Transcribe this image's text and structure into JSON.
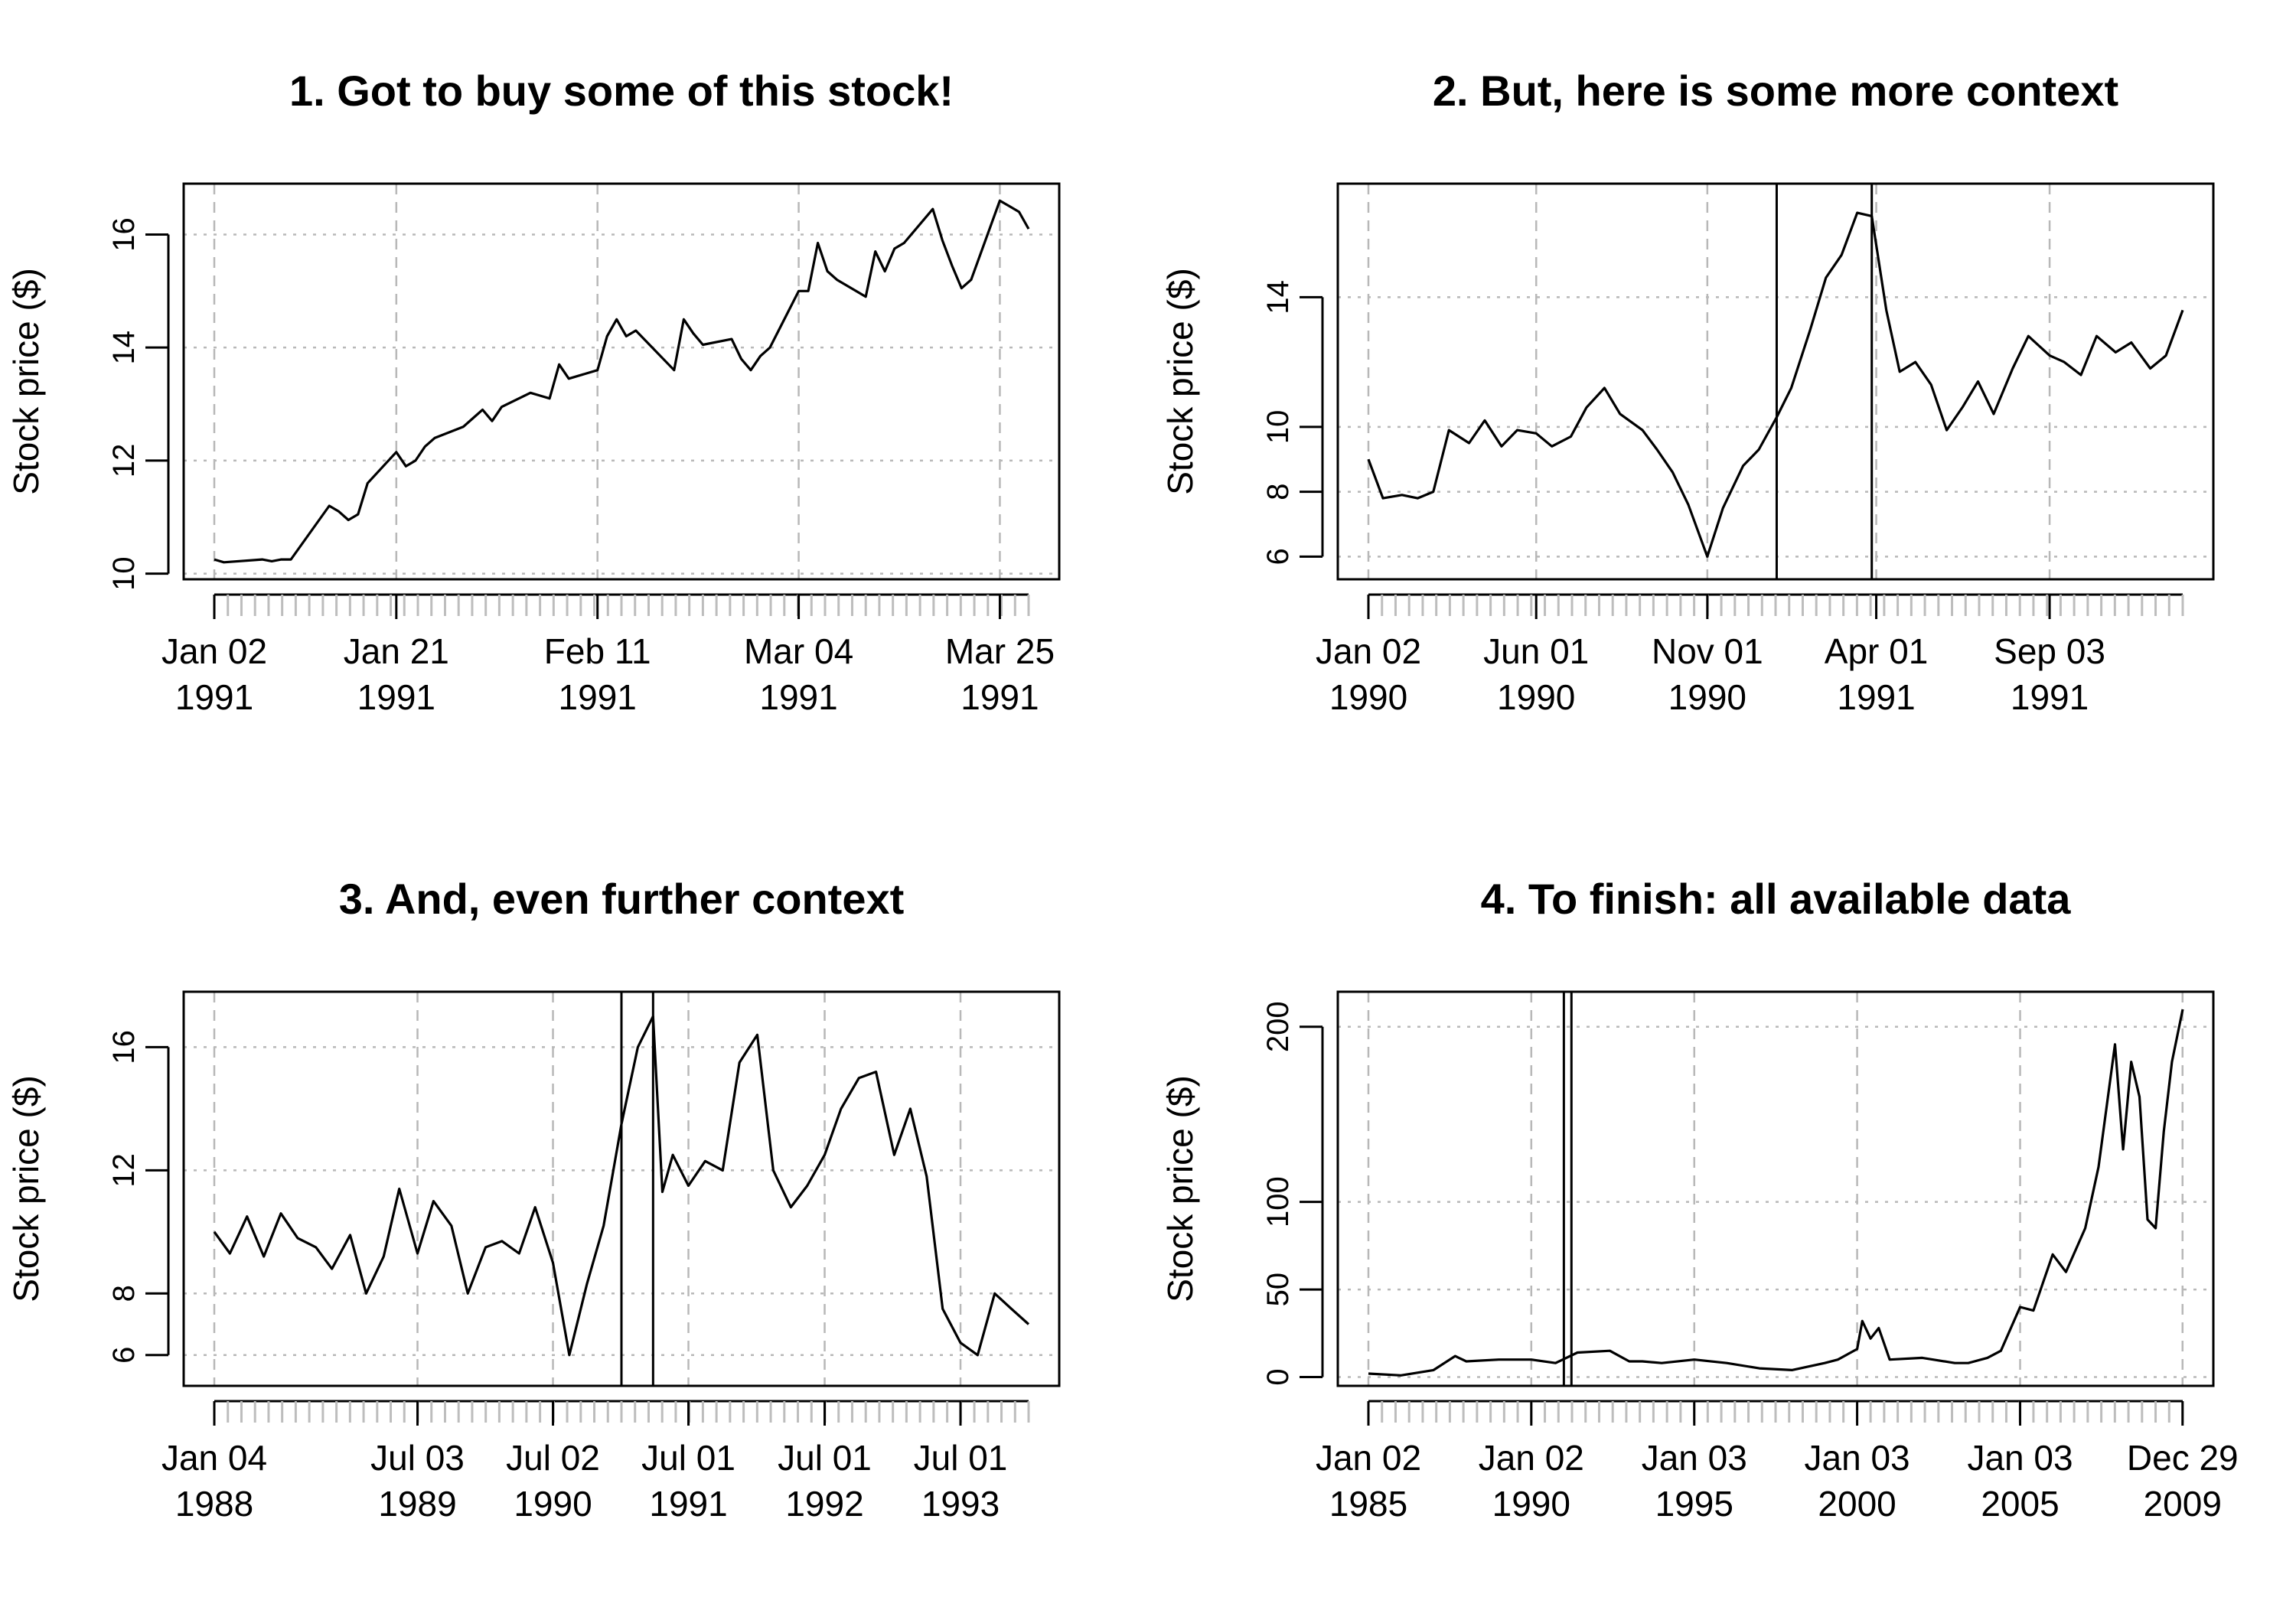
{
  "chart_data": [
    {
      "type": "line",
      "title": "1. Got to buy some of this stock!",
      "ylabel": "Stock price ($)",
      "xlabel": "",
      "xlim": [
        "1991-01-02",
        "1991-03-28"
      ],
      "ylim": [
        9.9,
        16.9
      ],
      "yticks": [
        10,
        12,
        14,
        16
      ],
      "xticks": [
        {
          "date": "1991-01-02",
          "label": "Jan 02",
          "sub": "1991"
        },
        {
          "date": "1991-01-21",
          "label": "Jan 21",
          "sub": "1991"
        },
        {
          "date": "1991-02-11",
          "label": "Feb 11",
          "sub": "1991"
        },
        {
          "date": "1991-03-04",
          "label": "Mar 04",
          "sub": "1991"
        },
        {
          "date": "1991-03-25",
          "label": "Mar 25",
          "sub": "1991"
        }
      ],
      "grid": true,
      "series": [
        {
          "x": [
            "1991-01-02",
            "1991-01-03",
            "1991-01-07",
            "1991-01-08",
            "1991-01-09",
            "1991-01-10",
            "1991-01-14",
            "1991-01-15",
            "1991-01-16",
            "1991-01-17",
            "1991-01-18",
            "1991-01-21",
            "1991-01-22",
            "1991-01-23",
            "1991-01-24",
            "1991-01-25",
            "1991-01-28",
            "1991-01-29",
            "1991-01-30",
            "1991-01-31",
            "1991-02-01",
            "1991-02-04",
            "1991-02-05",
            "1991-02-06",
            "1991-02-07",
            "1991-02-08",
            "1991-02-11",
            "1991-02-12",
            "1991-02-13",
            "1991-02-14",
            "1991-02-15",
            "1991-02-19",
            "1991-02-20",
            "1991-02-21",
            "1991-02-22",
            "1991-02-25",
            "1991-02-26",
            "1991-02-27",
            "1991-02-28",
            "1991-03-01",
            "1991-03-04",
            "1991-03-05",
            "1991-03-06",
            "1991-03-07",
            "1991-03-08",
            "1991-03-11",
            "1991-03-12",
            "1991-03-13",
            "1991-03-14",
            "1991-03-15",
            "1991-03-18",
            "1991-03-19",
            "1991-03-20",
            "1991-03-21",
            "1991-03-22",
            "1991-03-25",
            "1991-03-26",
            "1991-03-27",
            "1991-03-28"
          ],
          "y": [
            10.25,
            10.2,
            10.25,
            10.22,
            10.25,
            10.25,
            11.2,
            11.1,
            10.95,
            11.05,
            11.6,
            12.15,
            11.9,
            12.0,
            12.25,
            12.4,
            12.6,
            12.75,
            12.9,
            12.7,
            12.95,
            13.2,
            13.15,
            13.1,
            13.7,
            13.45,
            13.6,
            14.2,
            14.5,
            14.2,
            14.3,
            13.6,
            14.5,
            14.25,
            14.05,
            14.15,
            13.8,
            13.6,
            13.85,
            14.0,
            15.0,
            15.0,
            15.85,
            15.35,
            15.2,
            14.9,
            15.7,
            15.35,
            15.75,
            15.85,
            16.45,
            15.9,
            15.45,
            15.05,
            15.2,
            16.6,
            16.5,
            16.4,
            16.1
          ]
        }
      ]
    },
    {
      "type": "line",
      "title": "2. But, here is some more context",
      "ylabel": "Stock price ($)",
      "xlabel": "",
      "xlim": [
        "1990-01-02",
        "1991-12-31"
      ],
      "ylim": [
        5.3,
        17.5
      ],
      "yticks": [
        6,
        8,
        10,
        14
      ],
      "xticks": [
        {
          "date": "1990-01-02",
          "label": "Jan 02",
          "sub": "1990"
        },
        {
          "date": "1990-06-01",
          "label": "Jun 01",
          "sub": "1990"
        },
        {
          "date": "1990-11-01",
          "label": "Nov 01",
          "sub": "1990"
        },
        {
          "date": "1991-04-01",
          "label": "Apr 01",
          "sub": "1991"
        },
        {
          "date": "1991-09-03",
          "label": "Sep 03",
          "sub": "1991"
        }
      ],
      "vlines": [
        "1991-01-02",
        "1991-03-28"
      ],
      "grid": true,
      "series": [
        {
          "x": [
            "1990-01-02",
            "1990-01-15",
            "1990-02-01",
            "1990-02-15",
            "1990-03-01",
            "1990-03-15",
            "1990-04-02",
            "1990-04-16",
            "1990-05-01",
            "1990-05-15",
            "1990-06-01",
            "1990-06-15",
            "1990-07-02",
            "1990-07-16",
            "1990-08-01",
            "1990-08-15",
            "1990-09-04",
            "1990-09-17",
            "1990-10-01",
            "1990-10-15",
            "1990-11-01",
            "1990-11-15",
            "1990-12-03",
            "1990-12-17",
            "1991-01-02",
            "1991-01-15",
            "1991-02-01",
            "1991-02-15",
            "1991-03-01",
            "1991-03-15",
            "1991-03-28",
            "1991-04-10",
            "1991-04-22",
            "1991-05-06",
            "1991-05-20",
            "1991-06-03",
            "1991-06-17",
            "1991-07-01",
            "1991-07-15",
            "1991-08-01",
            "1991-08-15",
            "1991-09-03",
            "1991-09-16",
            "1991-10-01",
            "1991-10-15",
            "1991-11-01",
            "1991-11-15",
            "1991-12-02",
            "1991-12-16",
            "1991-12-31"
          ],
          "y": [
            9.0,
            7.8,
            7.9,
            7.8,
            8.0,
            9.9,
            9.5,
            10.2,
            9.4,
            9.9,
            9.8,
            9.4,
            9.7,
            10.6,
            11.2,
            10.4,
            9.9,
            9.3,
            8.6,
            7.6,
            6.0,
            7.5,
            8.8,
            9.3,
            10.3,
            11.2,
            13.0,
            14.6,
            15.3,
            16.6,
            16.5,
            13.6,
            11.7,
            12.0,
            11.3,
            9.9,
            10.6,
            11.4,
            10.4,
            11.8,
            12.8,
            12.2,
            12.0,
            11.6,
            12.8,
            12.3,
            12.6,
            11.8,
            12.2,
            13.6
          ]
        }
      ]
    },
    {
      "type": "line",
      "title": "3. And, even further context",
      "ylabel": "Stock price ($)",
      "xlabel": "",
      "xlim": [
        "1988-01-04",
        "1993-12-31"
      ],
      "ylim": [
        5.0,
        17.8
      ],
      "yticks": [
        6,
        8,
        12,
        16
      ],
      "xticks": [
        {
          "date": "1988-01-04",
          "label": "Jan 04",
          "sub": "1988"
        },
        {
          "date": "1989-07-03",
          "label": "Jul 03",
          "sub": "1989"
        },
        {
          "date": "1990-07-02",
          "label": "Jul 02",
          "sub": "1990"
        },
        {
          "date": "1991-07-01",
          "label": "Jul 01",
          "sub": "1991"
        },
        {
          "date": "1992-07-01",
          "label": "Jul 01",
          "sub": "1992"
        },
        {
          "date": "1993-07-01",
          "label": "Jul 01",
          "sub": "1993"
        }
      ],
      "vlines": [
        "1991-01-02",
        "1991-03-28"
      ],
      "grid": true,
      "series": [
        {
          "x": [
            "1988-01-04",
            "1988-02-15",
            "1988-04-01",
            "1988-05-16",
            "1988-07-01",
            "1988-08-15",
            "1988-10-03",
            "1988-11-15",
            "1989-01-03",
            "1989-02-15",
            "1989-04-03",
            "1989-05-15",
            "1989-07-03",
            "1989-08-15",
            "1989-10-02",
            "1989-11-15",
            "1990-01-02",
            "1990-02-15",
            "1990-04-02",
            "1990-05-15",
            "1990-07-02",
            "1990-08-15",
            "1990-10-01",
            "1990-11-15",
            "1991-01-02",
            "1991-02-15",
            "1991-03-28",
            "1991-04-22",
            "1991-05-20",
            "1991-07-01",
            "1991-08-15",
            "1991-10-01",
            "1991-11-15",
            "1992-01-02",
            "1992-02-14",
            "1992-04-01",
            "1992-05-15",
            "1992-07-01",
            "1992-08-14",
            "1992-10-01",
            "1992-11-16",
            "1993-01-04",
            "1993-02-16",
            "1993-04-01",
            "1993-05-14",
            "1993-07-01",
            "1993-08-16",
            "1993-10-01",
            "1993-11-15",
            "1993-12-31"
          ],
          "y": [
            10.0,
            9.3,
            10.5,
            9.2,
            10.6,
            9.8,
            9.5,
            8.8,
            9.9,
            8.0,
            9.2,
            11.4,
            9.3,
            11.0,
            10.2,
            8.0,
            9.5,
            9.7,
            9.3,
            10.8,
            9.0,
            6.0,
            8.3,
            10.2,
            13.5,
            16.0,
            17.0,
            11.3,
            12.5,
            11.5,
            12.3,
            12.0,
            15.5,
            16.4,
            12.0,
            10.8,
            11.5,
            12.5,
            14.0,
            15.0,
            15.2,
            12.5,
            14.0,
            11.8,
            7.5,
            6.4,
            6.0,
            8.0,
            7.5,
            7.0
          ]
        }
      ]
    },
    {
      "type": "line",
      "title": "4. To finish: all available data",
      "ylabel": "Stock price ($)",
      "xlabel": "",
      "xlim": [
        "1985-01-02",
        "2009-12-31"
      ],
      "ylim": [
        -5,
        220
      ],
      "yticks": [
        0,
        50,
        100,
        200
      ],
      "xticks": [
        {
          "date": "1985-01-02",
          "label": "Jan 02",
          "sub": "1985"
        },
        {
          "date": "1990-01-02",
          "label": "Jan 02",
          "sub": "1990"
        },
        {
          "date": "1995-01-03",
          "label": "Jan 03",
          "sub": "1995"
        },
        {
          "date": "2000-01-03",
          "label": "Jan 03",
          "sub": "2000"
        },
        {
          "date": "2005-01-03",
          "label": "Jan 03",
          "sub": "2005"
        },
        {
          "date": "2009-12-29",
          "label": "Dec 29",
          "sub": "2009"
        }
      ],
      "vlines": [
        "1991-01-02",
        "1991-03-28"
      ],
      "grid": true,
      "series": [
        {
          "x": [
            "1985-01-02",
            "1986-01-02",
            "1987-01-02",
            "1987-09-01",
            "1988-01-04",
            "1989-01-03",
            "1990-01-02",
            "1990-10-01",
            "1991-06-03",
            "1992-06-01",
            "1993-01-04",
            "1993-06-01",
            "1994-01-03",
            "1995-01-03",
            "1996-01-02",
            "1997-01-02",
            "1998-01-02",
            "1999-01-04",
            "1999-06-01",
            "2000-01-03",
            "2000-03-01",
            "2000-06-01",
            "2000-09-01",
            "2001-01-02",
            "2002-01-02",
            "2003-01-02",
            "2003-06-02",
            "2004-01-02",
            "2004-06-01",
            "2005-01-03",
            "2005-06-01",
            "2006-01-03",
            "2006-06-01",
            "2007-01-03",
            "2007-06-01",
            "2007-12-03",
            "2008-03-03",
            "2008-06-02",
            "2008-09-02",
            "2008-12-01",
            "2009-03-02",
            "2009-06-01",
            "2009-09-01",
            "2009-12-31"
          ],
          "y": [
            2,
            1,
            4,
            12,
            9,
            10,
            10,
            8,
            14,
            15,
            9,
            9,
            8,
            10,
            8,
            5,
            4,
            8,
            10,
            16,
            32,
            22,
            28,
            10,
            11,
            8,
            8,
            11,
            15,
            40,
            38,
            70,
            60,
            85,
            120,
            190,
            130,
            180,
            160,
            90,
            85,
            140,
            180,
            210
          ]
        }
      ]
    }
  ]
}
